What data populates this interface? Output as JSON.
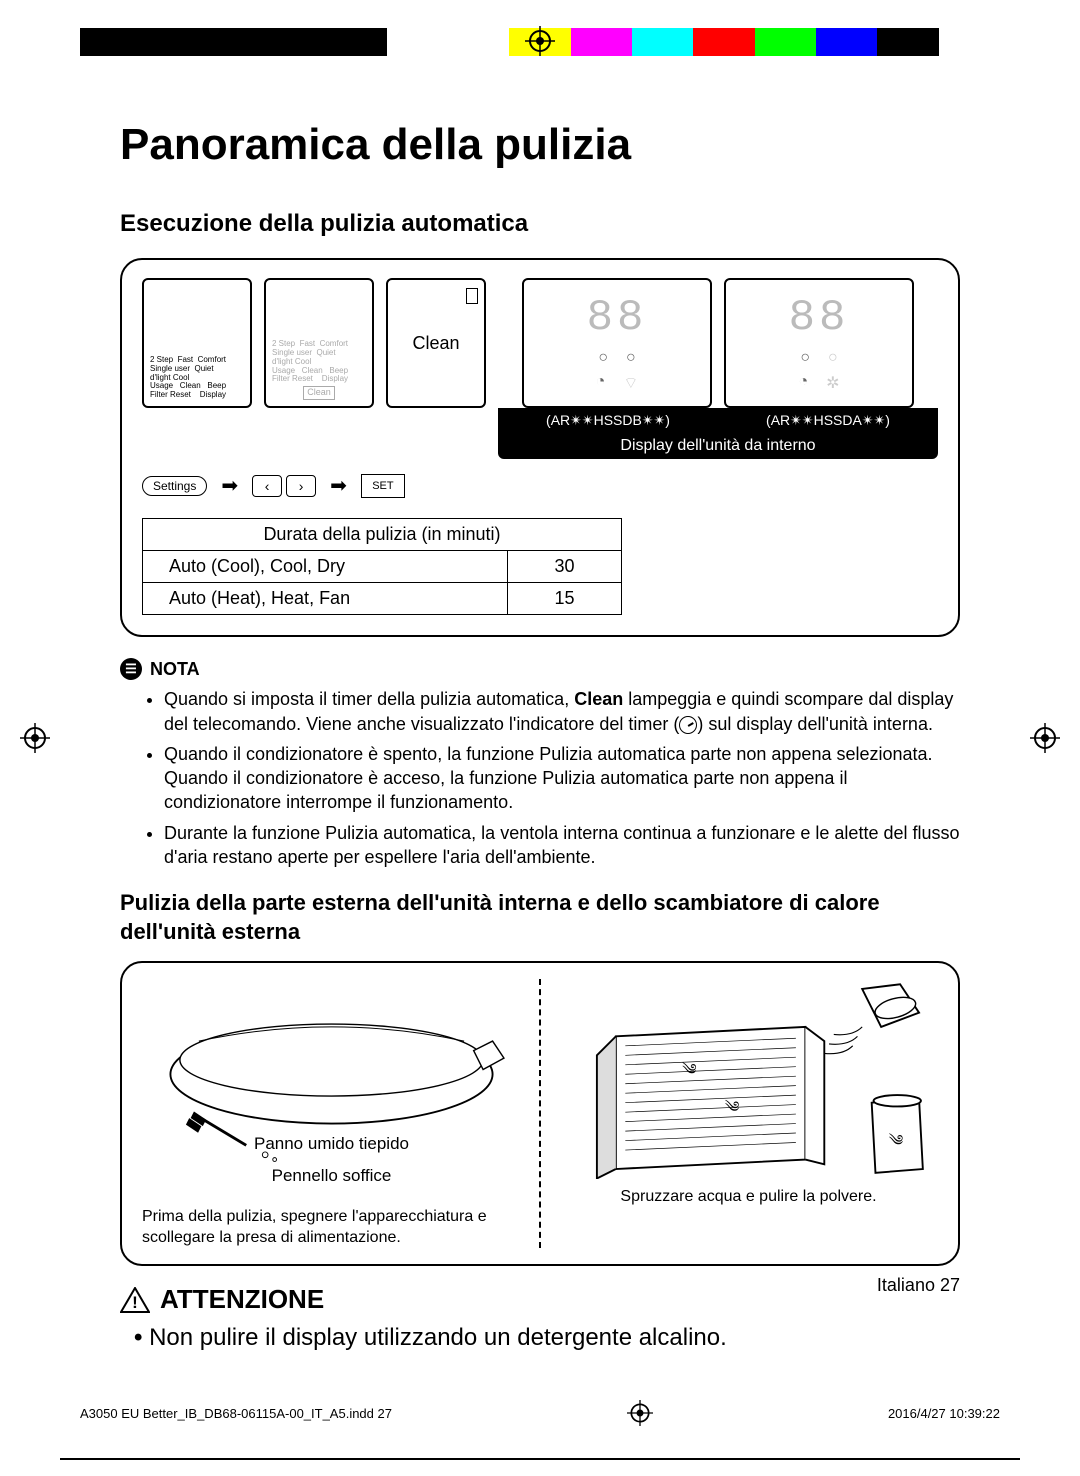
{
  "color_bar": [
    "#000000",
    "#000000",
    "#000000",
    "#000000",
    "#000000",
    "#ffffff",
    "#ffffff",
    "#ffff00",
    "#ff00ff",
    "#00ffff",
    "#ff0000",
    "#00ff00",
    "#0000ff",
    "#000000",
    "#ffffff"
  ],
  "page_title": "Panoramica della pulizia",
  "section1_title": "Esecuzione della pulizia automatica",
  "remote": {
    "lines1": "2 Step  Fast  Comfort\nSingle user  Quiet\nd'light Cool\nUsage   Clean   Beep\nFilter Reset    Display",
    "clean_box": "Clean",
    "main_label": "Clean",
    "settings_btn": "Settings",
    "set_btn": "SET"
  },
  "display_unit": {
    "model_a": "(AR✴✴HSSDB✴✴)",
    "model_b": "(AR✴✴HSSDA✴✴)",
    "caption": "Display dell'unità da interno"
  },
  "table": {
    "header": "Durata della pulizia (in minuti)",
    "rows": [
      [
        "Auto (Cool), Cool, Dry",
        "30"
      ],
      [
        "Auto (Heat), Heat, Fan",
        "15"
      ]
    ]
  },
  "nota_label": "NOTA",
  "nota_bullets": [
    "Quando si imposta il timer della pulizia automatica, <b>Clean</b> lampeggia e quindi scompare dal display del telecomando. Viene anche visualizzato l'indicatore del timer (<span class='timer-icon'></span>) sul display dell'unità interna.",
    "Quando il condizionatore è spento, la funzione Pulizia automatica parte non appena selezionata. Quando il condizionatore è acceso, la funzione Pulizia automatica parte non appena il condizionatore interrompe il funzionamento.",
    "Durante la funzione Pulizia automatica, la ventola interna continua a funzionare e le alette del flusso d'aria restano aperte per espellere l'aria dell'ambiente."
  ],
  "section2_title": "Pulizia della parte esterna dell'unità interna e dello scambiatore di calore dell'unità esterna",
  "clean_col1": {
    "label_damp": "Panno umido tiepido",
    "label_brush": "Pennello soffice",
    "caption": "Prima della pulizia, spegnere l'apparecchiatura e scollegare la presa di alimentazione."
  },
  "clean_col2": {
    "caption": "Spruzzare acqua e pulire la polvere."
  },
  "attenzione_label": "ATTENZIONE",
  "attenzione_bullet": "Non pulire il display utilizzando un detergente alcalino.",
  "page_footer": "Italiano 27",
  "indd_left": "A3050 EU Better_IB_DB68-06115A-00_IT_A5.indd   27",
  "indd_right": "2016/4/27   10:39:22"
}
